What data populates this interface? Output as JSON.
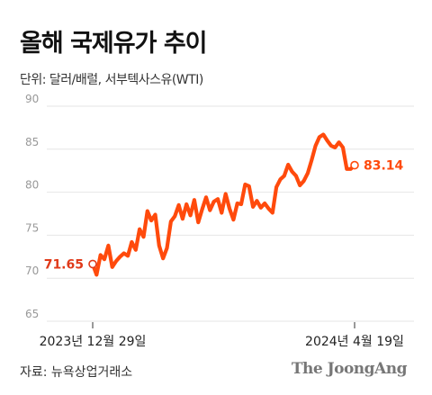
{
  "title": "올해 국제유가 추이",
  "unit_note": "단위: 달러/배럴, 서부텍사스유(WTI)",
  "source_note": "자료: 뉴욕상업거래소",
  "brand": "The JoongAng",
  "colors": {
    "line": "#ff4a0c",
    "start_label": "#e03a1a",
    "end_label": "#ff4a0c",
    "grid": "#e6e6e6",
    "axis_text": "#999999"
  },
  "chart_data": {
    "type": "line",
    "title": "올해 국제유가 추이",
    "ylim": [
      65,
      90
    ],
    "yticks": [
      65,
      70,
      75,
      80,
      85,
      90
    ],
    "x_labels": [
      "2023년 12월 29일",
      "2024년 4월 19일"
    ],
    "grid": true,
    "series": [
      {
        "values": [
          71.65,
          70.4,
          72.7,
          72.2,
          73.8,
          71.3,
          72.0,
          72.5,
          72.9,
          72.6,
          74.2,
          73.3,
          75.7,
          74.8,
          77.8,
          76.7,
          77.4,
          73.8,
          72.3,
          73.5,
          76.6,
          77.2,
          78.5,
          76.9,
          78.6,
          77.3,
          79.1,
          76.5,
          78.0,
          79.4,
          77.9,
          78.9,
          79.2,
          77.6,
          79.8,
          78.1,
          76.8,
          78.7,
          78.6,
          80.9,
          80.7,
          78.3,
          79.0,
          78.2,
          78.7,
          78.1,
          77.6,
          80.6,
          81.5,
          81.9,
          83.2,
          82.4,
          81.9,
          80.8,
          81.3,
          82.2,
          83.7,
          85.4,
          86.4,
          86.7,
          86.0,
          85.4,
          85.2,
          85.8,
          85.2,
          82.7,
          82.7,
          83.14
        ]
      }
    ],
    "annotations": {
      "start_value": "71.65",
      "end_value": "83.14"
    }
  }
}
